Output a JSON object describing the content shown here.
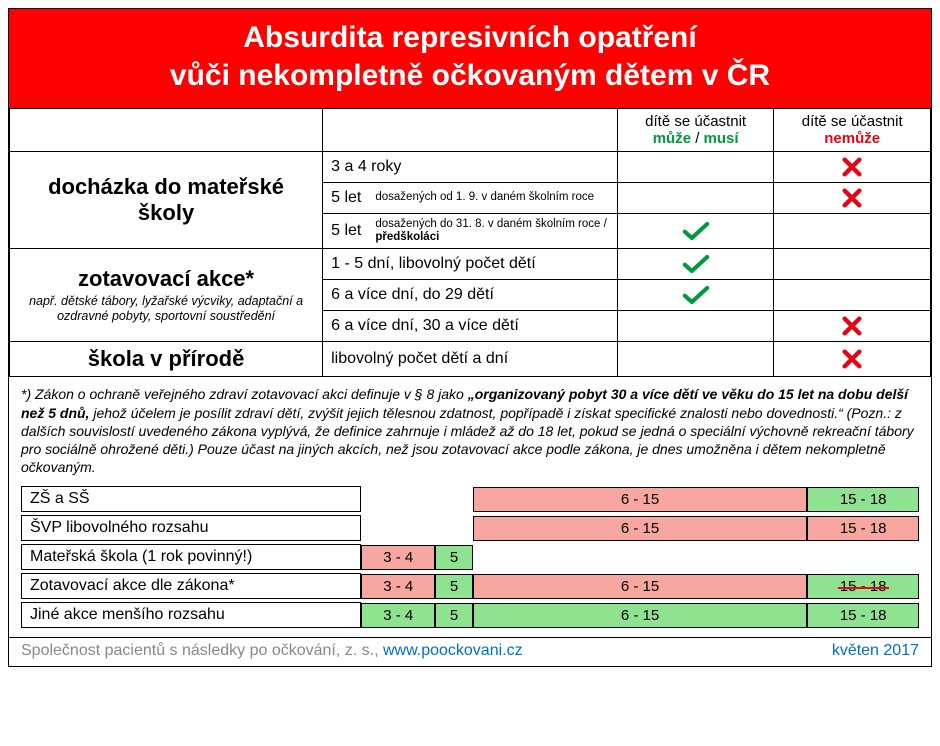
{
  "colors": {
    "header_bg": "#ff0000",
    "green": "#009a3d",
    "green_fill": "#8fe28f",
    "red": "#e30613",
    "pink_fill": "#f7a6a0",
    "blue": "#0070c0",
    "grey": "#7d7d7d"
  },
  "header": {
    "line1": "Absurdita represivních opatření",
    "line2": "vůči nekompletně očkovaným dětem v ČR"
  },
  "table": {
    "head": {
      "can_line1": "dítě se účastnit",
      "can_word": "může",
      "can_slash": " / ",
      "must_word": "musí",
      "cant_line1": "dítě se účastnit",
      "cant_word": "nemůže"
    },
    "groups": [
      {
        "category": "docházka do mateřské školy",
        "category_note": "",
        "rows": [
          {
            "sub_main": "3 a 4 roky",
            "sub_note": "",
            "can": false,
            "cant": true
          },
          {
            "sub_main": "5 let",
            "sub_note": "dosažených od 1. 9. v daném školním roce",
            "can": false,
            "cant": true
          },
          {
            "sub_main": "5 let",
            "sub_note_html": "dosažených do 31. 8. v daném školním roce / <b>předškoláci</b>",
            "can": true,
            "cant": false
          }
        ]
      },
      {
        "category": "zotavovací akce*",
        "category_note": "např. dětské tábory, lyžařské výcviky, adaptační a ozdravné pobyty, sportovní soustředění",
        "rows": [
          {
            "sub_main": "1 - 5 dní, libovolný počet dětí",
            "sub_note": "",
            "can": true,
            "cant": false
          },
          {
            "sub_main": "6 a více dní, do 29 dětí",
            "sub_note": "",
            "can": true,
            "cant": false
          },
          {
            "sub_main": "6 a více dní, 30 a více dětí",
            "sub_note": "",
            "can": false,
            "cant": true
          }
        ]
      },
      {
        "category": "škola v přírodě",
        "category_note": "",
        "rows": [
          {
            "sub_main": "libovolný počet dětí a dní",
            "sub_note": "",
            "can": false,
            "cant": true
          }
        ]
      }
    ]
  },
  "footnote_html": "*) Zákon o ochraně veřejného zdraví zotavovací akci definuje v § 8 jako <b>„organizovaný pobyt 30 a více dětí ve věku do 15 let na dobu delší než 5 dnů,</b> jehož účelem je posílit zdraví dětí, zvýšit jejich tělesnou zdatnost, popřípadě i získat specifické znalosti nebo dovednosti.“ (Pozn.: z dalších souvislostí uvedeného zákona vyplývá, že definice zahrnuje i mládež až do 18 let, pokud se jedná o speciální výchovně rekreační tábory pro sociálně ohrožené děti.) Pouze účast na jiných akcích, než jsou zotavovací akce podle zákona, je dnes umožněna i dětem nekompletně očkovaným.",
  "bars": {
    "scale_min": 3,
    "scale_max": 18,
    "rows": [
      {
        "label": "ZŠ a SŠ",
        "segments": [
          {
            "from": 6,
            "to": 15,
            "text": "6 - 15",
            "color": "pink"
          },
          {
            "from": 15,
            "to": 18,
            "text": "15 - 18",
            "color": "green"
          }
        ]
      },
      {
        "label": "ŠVP libovolného rozsahu",
        "segments": [
          {
            "from": 6,
            "to": 15,
            "text": "6 - 15",
            "color": "pink"
          },
          {
            "from": 15,
            "to": 18,
            "text": "15 - 18",
            "color": "pink"
          }
        ]
      },
      {
        "label": "Mateřská škola (1 rok povinný!)",
        "segments": [
          {
            "from": 3,
            "to": 5,
            "text": "3 - 4",
            "color": "pink"
          },
          {
            "from": 5,
            "to": 6,
            "text": "5",
            "color": "green"
          }
        ]
      },
      {
        "label": "Zotavovací akce dle zákona*",
        "segments": [
          {
            "from": 3,
            "to": 5,
            "text": "3 - 4",
            "color": "pink"
          },
          {
            "from": 5,
            "to": 6,
            "text": "5",
            "color": "green"
          },
          {
            "from": 6,
            "to": 15,
            "text": "6 - 15",
            "color": "pink"
          },
          {
            "from": 15,
            "to": 18,
            "text": "15 - 18",
            "color": "green_strike"
          }
        ]
      },
      {
        "label": "Jiné akce menšího rozsahu",
        "segments": [
          {
            "from": 3,
            "to": 5,
            "text": "3 - 4",
            "color": "green"
          },
          {
            "from": 5,
            "to": 6,
            "text": "5",
            "color": "green"
          },
          {
            "from": 6,
            "to": 15,
            "text": "6 - 15",
            "color": "green"
          },
          {
            "from": 15,
            "to": 18,
            "text": "15 - 18",
            "color": "green"
          }
        ]
      }
    ]
  },
  "footer": {
    "org": "Společnost pacientů s následky po očkování, z. s., ",
    "url": "www.poockovani.cz",
    "date": "květen 2017"
  }
}
